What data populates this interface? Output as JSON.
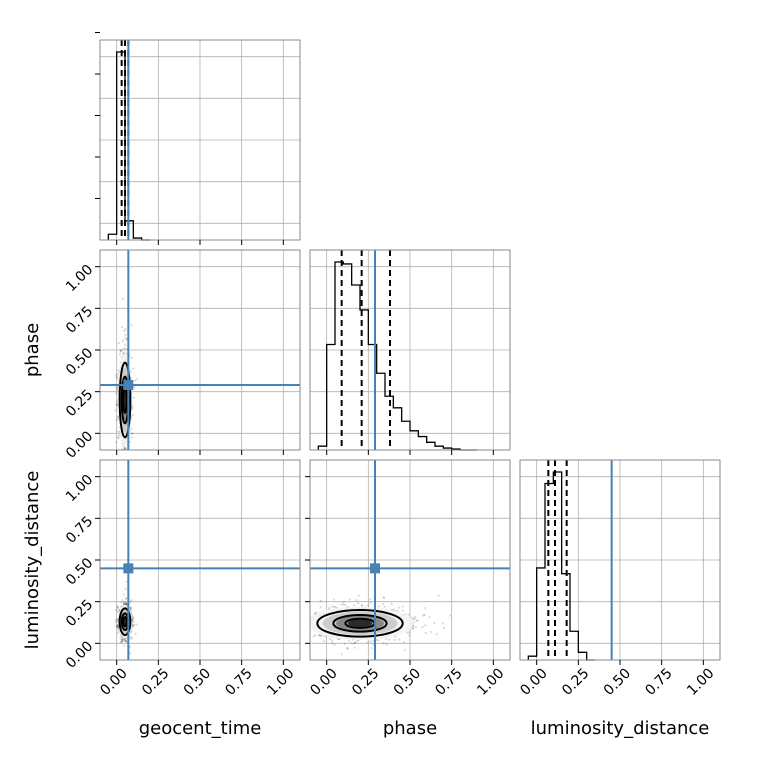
{
  "chart_data": {
    "type": "corner",
    "parameters": [
      "geocent_time",
      "phase",
      "luminosity_distance"
    ],
    "axis_range": [
      -0.1,
      1.1
    ],
    "ticks": [
      0.0,
      0.25,
      0.5,
      0.75,
      1.0
    ],
    "tick_labels": [
      "0.00",
      "0.25",
      "0.50",
      "0.75",
      "1.00"
    ],
    "truths": {
      "geocent_time": 0.07,
      "phase": 0.29,
      "luminosity_distance": 0.45
    },
    "quantiles": {
      "geocent_time": [
        0.03,
        0.05,
        0.07
      ],
      "phase": [
        0.09,
        0.21,
        0.38
      ],
      "luminosity_distance": [
        0.07,
        0.11,
        0.18
      ]
    },
    "histograms": {
      "geocent_time": {
        "bin_width": 0.05,
        "bins_start": [
          -0.05,
          0.0,
          0.05,
          0.1,
          0.15
        ],
        "density": [
          0.03,
          0.98,
          0.1,
          0.01,
          0.0
        ]
      },
      "phase": {
        "bin_width": 0.05,
        "bins_start": [
          -0.05,
          0.0,
          0.05,
          0.1,
          0.15,
          0.2,
          0.25,
          0.3,
          0.35,
          0.4,
          0.45,
          0.5,
          0.55,
          0.6,
          0.65,
          0.7,
          0.75,
          0.8,
          0.85
        ],
        "density": [
          0.02,
          0.55,
          0.98,
          0.97,
          0.86,
          0.73,
          0.55,
          0.4,
          0.28,
          0.22,
          0.15,
          0.1,
          0.07,
          0.04,
          0.02,
          0.01,
          0.005,
          0.0,
          0.0
        ]
      },
      "luminosity_distance": {
        "bin_width": 0.05,
        "bins_start": [
          -0.05,
          0.0,
          0.05,
          0.1,
          0.15,
          0.2,
          0.25,
          0.3
        ],
        "density": [
          0.02,
          0.48,
          0.92,
          0.98,
          0.45,
          0.15,
          0.04,
          0.0
        ]
      }
    },
    "scatter_2d": [
      {
        "x_param": "geocent_time",
        "y_param": "phase",
        "center": [
          0.05,
          0.2
        ],
        "spread": [
          0.02,
          0.14
        ],
        "n": 900
      },
      {
        "x_param": "geocent_time",
        "y_param": "luminosity_distance",
        "center": [
          0.05,
          0.13
        ],
        "spread": [
          0.02,
          0.05
        ],
        "n": 800
      },
      {
        "x_param": "phase",
        "y_param": "luminosity_distance",
        "center": [
          0.2,
          0.12
        ],
        "spread": [
          0.16,
          0.05
        ],
        "n": 1200
      }
    ]
  }
}
